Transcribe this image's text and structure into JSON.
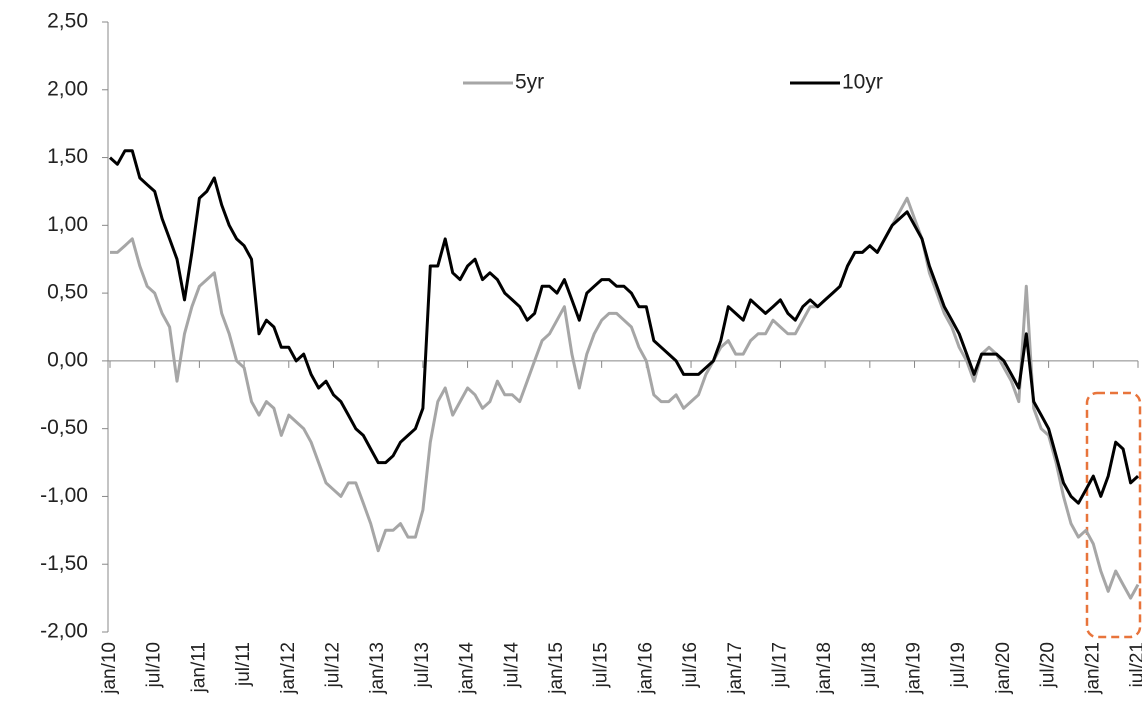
{
  "chart_data": {
    "type": "line",
    "categories": [
      "jan/10",
      null,
      null,
      null,
      null,
      null,
      "jul/10",
      null,
      null,
      null,
      null,
      null,
      "jan/11",
      null,
      null,
      null,
      null,
      null,
      "jul/11",
      null,
      null,
      null,
      null,
      null,
      "jan/12",
      null,
      null,
      null,
      null,
      null,
      "jul/12",
      null,
      null,
      null,
      null,
      null,
      "jan/13",
      null,
      null,
      null,
      null,
      null,
      "jul/13",
      null,
      null,
      null,
      null,
      null,
      "jan/14",
      null,
      null,
      null,
      null,
      null,
      "jul/14",
      null,
      null,
      null,
      null,
      null,
      "jan/15",
      null,
      null,
      null,
      null,
      null,
      "jul/15",
      null,
      null,
      null,
      null,
      null,
      "jan/16",
      null,
      null,
      null,
      null,
      null,
      "jul/16",
      null,
      null,
      null,
      null,
      null,
      "jan/17",
      null,
      null,
      null,
      null,
      null,
      "jul/17",
      null,
      null,
      null,
      null,
      null,
      "jan/18",
      null,
      null,
      null,
      null,
      null,
      "jul/18",
      null,
      null,
      null,
      null,
      null,
      "jan/19",
      null,
      null,
      null,
      null,
      null,
      "jul/19",
      null,
      null,
      null,
      null,
      null,
      "jan/20",
      null,
      null,
      null,
      null,
      null,
      "jul/20",
      null,
      null,
      null,
      null,
      null,
      "jan/21",
      null,
      null,
      null,
      null,
      null,
      "jul/21"
    ],
    "series": [
      {
        "name": "5yr",
        "color": "#a6a6a6",
        "values": [
          0.8,
          0.8,
          0.85,
          0.9,
          0.7,
          0.55,
          0.5,
          0.35,
          0.25,
          -0.15,
          0.2,
          0.4,
          0.55,
          0.6,
          0.65,
          0.35,
          0.2,
          0.0,
          -0.05,
          -0.3,
          -0.4,
          -0.3,
          -0.35,
          -0.55,
          -0.4,
          -0.45,
          -0.5,
          -0.6,
          -0.75,
          -0.9,
          -0.95,
          -1.0,
          -0.9,
          -0.9,
          -1.05,
          -1.2,
          -1.4,
          -1.25,
          -1.25,
          -1.2,
          -1.3,
          -1.3,
          -1.1,
          -0.6,
          -0.3,
          -0.2,
          -0.4,
          -0.3,
          -0.2,
          -0.25,
          -0.35,
          -0.3,
          -0.15,
          -0.25,
          -0.25,
          -0.3,
          -0.15,
          0.0,
          0.15,
          0.2,
          0.3,
          0.4,
          0.05,
          -0.2,
          0.05,
          0.2,
          0.3,
          0.35,
          0.35,
          0.3,
          0.25,
          0.1,
          0.0,
          -0.25,
          -0.3,
          -0.3,
          -0.25,
          -0.35,
          -0.3,
          -0.25,
          -0.1,
          0.0,
          0.1,
          0.15,
          0.05,
          0.05,
          0.15,
          0.2,
          0.2,
          0.3,
          0.25,
          0.2,
          0.2,
          0.3,
          0.4,
          0.4,
          0.45,
          0.5,
          0.55,
          0.7,
          0.8,
          0.8,
          0.85,
          0.8,
          0.9,
          1.0,
          1.1,
          1.2,
          1.05,
          0.9,
          0.65,
          0.5,
          0.35,
          0.25,
          0.1,
          0.0,
          -0.15,
          0.05,
          0.1,
          0.05,
          -0.05,
          -0.15,
          -0.3,
          0.55,
          -0.35,
          -0.5,
          -0.55,
          -0.75,
          -1.0,
          -1.2,
          -1.3,
          -1.25,
          -1.35,
          -1.55,
          -1.7,
          -1.55,
          -1.65,
          -1.75,
          -1.65
        ]
      },
      {
        "name": "10yr",
        "color": "#000000",
        "values": [
          1.5,
          1.45,
          1.55,
          1.55,
          1.35,
          1.3,
          1.25,
          1.05,
          0.9,
          0.75,
          0.45,
          0.8,
          1.2,
          1.25,
          1.35,
          1.15,
          1.0,
          0.9,
          0.85,
          0.75,
          0.2,
          0.3,
          0.25,
          0.1,
          0.1,
          0.0,
          0.05,
          -0.1,
          -0.2,
          -0.15,
          -0.25,
          -0.3,
          -0.4,
          -0.5,
          -0.55,
          -0.65,
          -0.75,
          -0.75,
          -0.7,
          -0.6,
          -0.55,
          -0.5,
          -0.35,
          0.7,
          0.7,
          0.9,
          0.65,
          0.6,
          0.7,
          0.75,
          0.6,
          0.65,
          0.6,
          0.5,
          0.45,
          0.4,
          0.3,
          0.35,
          0.55,
          0.55,
          0.5,
          0.6,
          0.45,
          0.3,
          0.5,
          0.55,
          0.6,
          0.6,
          0.55,
          0.55,
          0.5,
          0.4,
          0.4,
          0.15,
          0.1,
          0.05,
          0.0,
          -0.1,
          -0.1,
          -0.1,
          -0.05,
          0.0,
          0.15,
          0.4,
          0.35,
          0.3,
          0.45,
          0.4,
          0.35,
          0.4,
          0.45,
          0.35,
          0.3,
          0.4,
          0.45,
          0.4,
          0.45,
          0.5,
          0.55,
          0.7,
          0.8,
          0.8,
          0.85,
          0.8,
          0.9,
          1.0,
          1.05,
          1.1,
          1.0,
          0.9,
          0.7,
          0.55,
          0.4,
          0.3,
          0.2,
          0.05,
          -0.1,
          0.05,
          0.05,
          0.05,
          0.0,
          -0.1,
          -0.2,
          0.2,
          -0.3,
          -0.4,
          -0.5,
          -0.7,
          -0.9,
          -1.0,
          -1.05,
          -0.95,
          -0.85,
          -1.0,
          -0.85,
          -0.6,
          -0.65,
          -0.9,
          -0.85
        ]
      }
    ],
    "ylim": [
      -2,
      2.5
    ],
    "yticks": [
      {
        "value": -2,
        "label": "-2,00"
      },
      {
        "value": -1.5,
        "label": "-1,50"
      },
      {
        "value": -1,
        "label": "-1,00"
      },
      {
        "value": -0.5,
        "label": "-0,50"
      },
      {
        "value": 0,
        "label": "0,00"
      },
      {
        "value": 0.5,
        "label": "0,50"
      },
      {
        "value": 1,
        "label": "1,00"
      },
      {
        "value": 1.5,
        "label": "1,50"
      },
      {
        "value": 2,
        "label": "2,00"
      },
      {
        "value": 2.5,
        "label": "2,50"
      }
    ],
    "grid": false
  }
}
